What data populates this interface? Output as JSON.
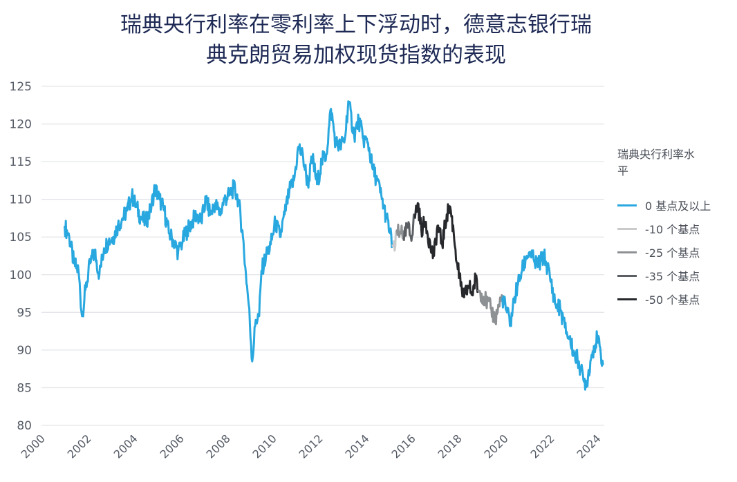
{
  "title_lines": [
    "瑞典央行利率在零利率上下浮动时，德意志银行瑞",
    "典克朗贸易加权现货指数的表现"
  ],
  "legend": {
    "title": "瑞典央行利率水平",
    "items": [
      {
        "label": "0 基点及以上",
        "color": "#29a8e0"
      },
      {
        "label": "-10 个基点",
        "color": "#c8cacc"
      },
      {
        "label": "-25 个基点",
        "color": "#8e9194"
      },
      {
        "label": "-35 个基点",
        "color": "#5b5e63"
      },
      {
        "label": "-50 个基点",
        "color": "#26282c"
      }
    ]
  },
  "chart_data": {
    "type": "line",
    "title": "瑞典央行利率在零利率上下浮动时，德意志银行瑞典克朗贸易加权现货指数的表现",
    "xlabel": "",
    "ylabel": "",
    "xlim": [
      2000,
      2024.3
    ],
    "ylim": [
      80,
      125
    ],
    "y_ticks": [
      80,
      85,
      90,
      95,
      100,
      105,
      110,
      115,
      120,
      125
    ],
    "x_ticks": [
      "2000",
      "2002",
      "2004",
      "2006",
      "2008",
      "2010",
      "2012",
      "2014",
      "2016",
      "2018",
      "2020",
      "2022",
      "2024"
    ],
    "grid": "horizontal",
    "legend_position": "right",
    "series": [
      {
        "name": "0 基点及以上",
        "color": "#29a8e0",
        "points": [
          [
            2001.0,
            106.5
          ],
          [
            2001.2,
            105.0
          ],
          [
            2001.4,
            101.5
          ],
          [
            2001.6,
            100.5
          ],
          [
            2001.75,
            94.5
          ],
          [
            2001.9,
            98.0
          ],
          [
            2002.1,
            101.5
          ],
          [
            2002.3,
            103.0
          ],
          [
            2002.5,
            100.0
          ],
          [
            2002.7,
            103.5
          ],
          [
            2002.9,
            104.5
          ],
          [
            2003.1,
            105.0
          ],
          [
            2003.3,
            106.5
          ],
          [
            2003.5,
            107.5
          ],
          [
            2003.7,
            108.5
          ],
          [
            2003.9,
            110.5
          ],
          [
            2004.1,
            109.0
          ],
          [
            2004.3,
            107.5
          ],
          [
            2004.5,
            107.0
          ],
          [
            2004.7,
            108.5
          ],
          [
            2004.9,
            111.5
          ],
          [
            2005.1,
            110.0
          ],
          [
            2005.3,
            108.5
          ],
          [
            2005.5,
            105.5
          ],
          [
            2005.7,
            104.5
          ],
          [
            2005.9,
            103.0
          ],
          [
            2006.1,
            104.5
          ],
          [
            2006.3,
            106.0
          ],
          [
            2006.5,
            107.0
          ],
          [
            2006.7,
            108.0
          ],
          [
            2006.9,
            107.0
          ],
          [
            2007.1,
            110.0
          ],
          [
            2007.3,
            108.0
          ],
          [
            2007.5,
            109.5
          ],
          [
            2007.7,
            108.0
          ],
          [
            2007.9,
            110.0
          ],
          [
            2008.1,
            110.5
          ],
          [
            2008.3,
            111.5
          ],
          [
            2008.5,
            110.0
          ],
          [
            2008.7,
            105.0
          ],
          [
            2008.8,
            101.0
          ],
          [
            2008.95,
            96.0
          ],
          [
            2009.1,
            88.5
          ],
          [
            2009.25,
            94.0
          ],
          [
            2009.4,
            94.5
          ],
          [
            2009.5,
            100.5
          ],
          [
            2009.7,
            102.5
          ],
          [
            2009.9,
            104.0
          ],
          [
            2010.1,
            107.0
          ],
          [
            2010.3,
            105.0
          ],
          [
            2010.5,
            108.0
          ],
          [
            2010.7,
            111.0
          ],
          [
            2010.9,
            112.5
          ],
          [
            2011.1,
            117.0
          ],
          [
            2011.3,
            115.5
          ],
          [
            2011.5,
            112.0
          ],
          [
            2011.7,
            115.5
          ],
          [
            2011.9,
            112.0
          ],
          [
            2012.1,
            115.0
          ],
          [
            2012.3,
            116.0
          ],
          [
            2012.5,
            122.0
          ],
          [
            2012.7,
            117.5
          ],
          [
            2012.9,
            117.0
          ],
          [
            2013.1,
            118.0
          ],
          [
            2013.25,
            123.0
          ],
          [
            2013.5,
            118.5
          ],
          [
            2013.7,
            120.5
          ],
          [
            2013.9,
            118.0
          ],
          [
            2014.1,
            117.5
          ],
          [
            2014.3,
            114.0
          ],
          [
            2014.5,
            112.5
          ],
          [
            2014.7,
            110.0
          ],
          [
            2014.9,
            107.5
          ],
          [
            2015.05,
            105.5
          ],
          [
            2015.15,
            104.0
          ]
        ]
      },
      {
        "name": "-10 个基点",
        "color": "#c8cacc",
        "points": [
          [
            2015.15,
            104.0
          ],
          [
            2015.25,
            103.2
          ],
          [
            2015.35,
            106.0
          ]
        ]
      },
      {
        "name": "-25 个基点",
        "color": "#8e9194",
        "points": [
          [
            2015.35,
            106.0
          ],
          [
            2015.45,
            105.0
          ],
          [
            2015.55,
            106.5
          ],
          [
            2015.65,
            104.5
          ]
        ]
      },
      {
        "name": "-35 个基点",
        "color": "#5b5e63",
        "points": [
          [
            2015.65,
            104.5
          ],
          [
            2015.8,
            106.5
          ],
          [
            2015.95,
            105.0
          ],
          [
            2016.1,
            107.5
          ]
        ]
      },
      {
        "name": "-50 个基点",
        "color": "#26282c",
        "points": [
          [
            2016.1,
            107.5
          ],
          [
            2016.25,
            109.5
          ],
          [
            2016.4,
            106.0
          ],
          [
            2016.6,
            107.0
          ],
          [
            2016.8,
            103.5
          ],
          [
            2016.95,
            102.5
          ],
          [
            2017.1,
            106.5
          ],
          [
            2017.3,
            104.0
          ],
          [
            2017.5,
            108.0
          ],
          [
            2017.65,
            109.0
          ],
          [
            2017.8,
            105.5
          ],
          [
            2017.95,
            101.5
          ],
          [
            2018.1,
            98.5
          ],
          [
            2018.25,
            97.0
          ],
          [
            2018.45,
            98.5
          ],
          [
            2018.6,
            97.5
          ],
          [
            2018.75,
            99.5
          ],
          [
            2018.85,
            98.0
          ]
        ]
      },
      {
        "name": "-25 个基点",
        "color": "#8e9194",
        "points": [
          [
            2018.85,
            98.0
          ],
          [
            2019.0,
            97.5
          ],
          [
            2019.2,
            96.5
          ],
          [
            2019.4,
            95.5
          ],
          [
            2019.6,
            94.0
          ],
          [
            2019.75,
            96.0
          ],
          [
            2019.9,
            97.0
          ]
        ]
      },
      {
        "name": "0 基点及以上",
        "color": "#29a8e0",
        "points": [
          [
            2019.9,
            97.0
          ],
          [
            2020.1,
            95.0
          ],
          [
            2020.25,
            93.5
          ],
          [
            2020.4,
            96.5
          ],
          [
            2020.55,
            98.5
          ],
          [
            2020.75,
            100.5
          ],
          [
            2020.95,
            102.5
          ],
          [
            2021.1,
            103.0
          ],
          [
            2021.3,
            101.5
          ],
          [
            2021.5,
            101.5
          ],
          [
            2021.7,
            102.5
          ],
          [
            2021.85,
            101.0
          ],
          [
            2022.0,
            99.0
          ],
          [
            2022.2,
            96.0
          ],
          [
            2022.4,
            95.5
          ],
          [
            2022.6,
            93.0
          ],
          [
            2022.8,
            91.5
          ],
          [
            2023.0,
            89.5
          ],
          [
            2023.2,
            88.5
          ],
          [
            2023.4,
            86.0
          ],
          [
            2023.55,
            85.7
          ],
          [
            2023.7,
            88.5
          ],
          [
            2023.85,
            90.5
          ],
          [
            2024.0,
            91.5
          ],
          [
            2024.15,
            89.5
          ],
          [
            2024.25,
            88.0
          ]
        ]
      }
    ]
  }
}
